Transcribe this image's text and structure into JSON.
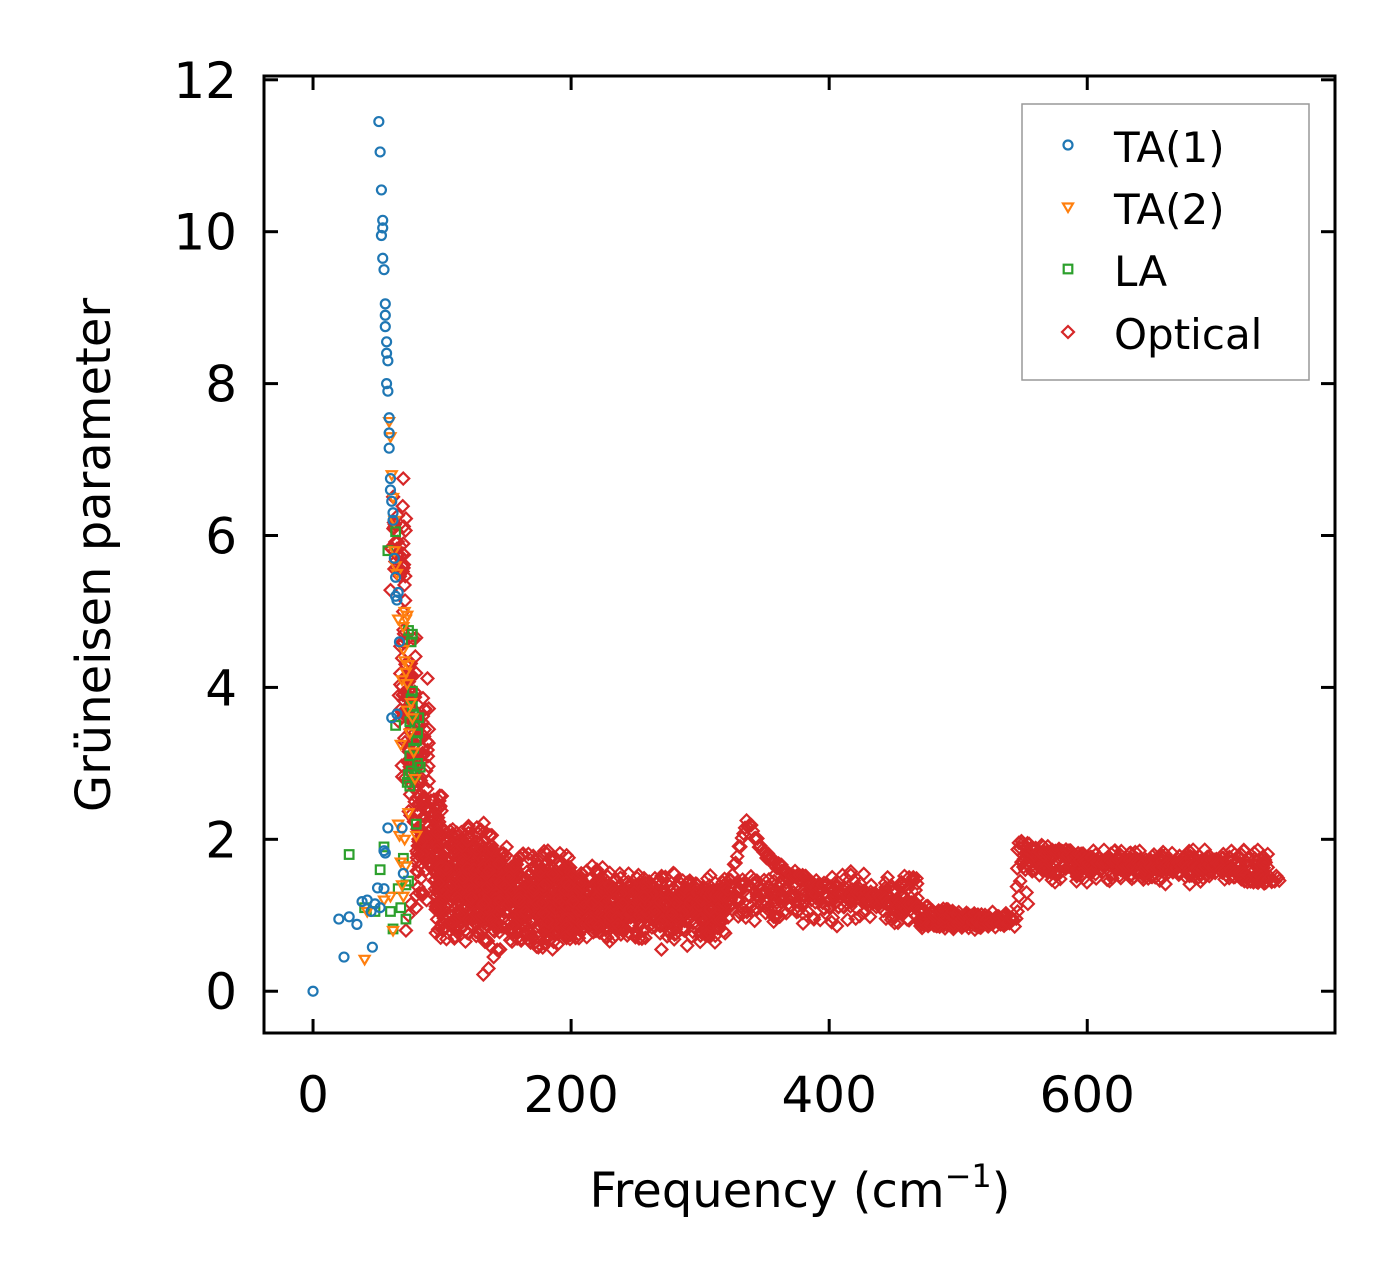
{
  "chart_data": {
    "type": "scatter",
    "xlabel": "Frequency (cm",
    "xlabel_unit_exp": "−1",
    "xlabel_close": ")",
    "ylabel": "Grüneisen parameter",
    "xlim": [
      -38,
      792
    ],
    "ylim": [
      -0.55,
      12.05
    ],
    "xticks": [
      0,
      200,
      400,
      600
    ],
    "yticks": [
      0,
      2,
      4,
      6,
      8,
      10,
      12
    ],
    "legend_position": "top-right",
    "series": [
      {
        "name": "TA(1)",
        "marker": "circle",
        "color": "#1f77b4",
        "points": [
          [
            0,
            0
          ],
          [
            20,
            0.95
          ],
          [
            24,
            0.45
          ],
          [
            28,
            0.98
          ],
          [
            34,
            0.88
          ],
          [
            38,
            1.18
          ],
          [
            42,
            1.2
          ],
          [
            45,
            1.05
          ],
          [
            46,
            0.58
          ],
          [
            48,
            1.15
          ],
          [
            50,
            1.36
          ],
          [
            51,
            11.45
          ],
          [
            52,
            11.05
          ],
          [
            52,
            1.1
          ],
          [
            53,
            10.55
          ],
          [
            54,
            10.15
          ],
          [
            54,
            10.05
          ],
          [
            53,
            9.95
          ],
          [
            54,
            9.65
          ],
          [
            55,
            9.5
          ],
          [
            55,
            1.35
          ],
          [
            55,
            1.85
          ],
          [
            56,
            9.05
          ],
          [
            56,
            8.9
          ],
          [
            56,
            8.75
          ],
          [
            57,
            8.55
          ],
          [
            57,
            8.4
          ],
          [
            58,
            8.3
          ],
          [
            56,
            1.82
          ],
          [
            58,
            2.15
          ],
          [
            57,
            8.0
          ],
          [
            58,
            7.9
          ],
          [
            59,
            7.55
          ],
          [
            59,
            7.35
          ],
          [
            59,
            7.15
          ],
          [
            60,
            6.75
          ],
          [
            60,
            6.6
          ],
          [
            61,
            6.45
          ],
          [
            62,
            6.3
          ],
          [
            61,
            3.6
          ],
          [
            62,
            6.2
          ],
          [
            63,
            5.7
          ],
          [
            64,
            5.45
          ],
          [
            64,
            5.2
          ],
          [
            65,
            5.15
          ],
          [
            65,
            3.65
          ],
          [
            66,
            5.25
          ],
          [
            67,
            4.6
          ],
          [
            69,
            2.15
          ],
          [
            70,
            1.55
          ]
        ]
      },
      {
        "name": "TA(2)",
        "marker": "triangle",
        "color": "#ff7f0e",
        "points": [
          [
            40,
            0.42
          ],
          [
            42,
            1.05
          ],
          [
            55,
            1.2
          ],
          [
            59,
            7.5
          ],
          [
            60,
            7.3
          ],
          [
            61,
            6.8
          ],
          [
            62,
            6.5
          ],
          [
            63,
            6.2
          ],
          [
            60,
            1.25
          ],
          [
            62,
            0.8
          ],
          [
            63,
            5.8
          ],
          [
            64,
            5.6
          ],
          [
            65,
            5.5
          ],
          [
            66,
            4.9
          ],
          [
            66,
            2.2
          ],
          [
            67,
            2.05
          ],
          [
            68,
            3.25
          ],
          [
            68,
            1.7
          ],
          [
            69,
            4.1
          ],
          [
            69,
            1.4
          ],
          [
            70,
            4.5
          ],
          [
            70,
            1.25
          ],
          [
            71,
            4.35
          ],
          [
            71,
            2.0
          ],
          [
            72,
            4.2
          ],
          [
            72,
            1.65
          ],
          [
            73,
            4.05
          ],
          [
            73,
            3.7
          ],
          [
            74,
            4.3
          ],
          [
            74,
            2.35
          ],
          [
            75,
            3.4
          ],
          [
            76,
            3.8
          ],
          [
            77,
            3.6
          ],
          [
            78,
            3.15
          ],
          [
            79,
            2.8
          ],
          [
            80,
            2.05
          ],
          [
            70,
            4.8
          ],
          [
            71,
            5.0
          ],
          [
            72,
            4.9
          ],
          [
            73,
            4.95
          ]
        ]
      },
      {
        "name": "LA",
        "marker": "square",
        "color": "#2ca02c",
        "points": [
          [
            28,
            1.8
          ],
          [
            40,
            1.1
          ],
          [
            48,
            1.05
          ],
          [
            52,
            1.6
          ],
          [
            55,
            1.9
          ],
          [
            58,
            5.8
          ],
          [
            60,
            1.05
          ],
          [
            62,
            0.82
          ],
          [
            64,
            6.05
          ],
          [
            64,
            3.5
          ],
          [
            66,
            1.35
          ],
          [
            68,
            1.1
          ],
          [
            70,
            1.75
          ],
          [
            72,
            0.95
          ],
          [
            72,
            1.4
          ],
          [
            73,
            2.75
          ],
          [
            74,
            2.85
          ],
          [
            74,
            1.45
          ],
          [
            75,
            3.1
          ],
          [
            75,
            2.7
          ],
          [
            76,
            2.9
          ],
          [
            76,
            3.85
          ],
          [
            77,
            3.75
          ],
          [
            77,
            3.95
          ],
          [
            78,
            3.65
          ],
          [
            78,
            3.2
          ],
          [
            79,
            3.5
          ],
          [
            79,
            2.85
          ],
          [
            80,
            3.3
          ],
          [
            80,
            2.2
          ],
          [
            81,
            3.0
          ],
          [
            81,
            3.4
          ],
          [
            82,
            3.6
          ],
          [
            83,
            2.95
          ],
          [
            76,
            4.6
          ],
          [
            77,
            4.7
          ],
          [
            74,
            4.75
          ],
          [
            75,
            3.55
          ]
        ]
      },
      {
        "name": "Optical",
        "marker": "diamond",
        "color": "#d62728",
        "clusters": [
          {
            "x": [
              60,
              72
            ],
            "y": [
              4.6,
              7.0
            ],
            "n": 40
          },
          {
            "x": [
              66,
              80
            ],
            "y": [
              2.5,
              5.2
            ],
            "n": 60
          },
          {
            "x": [
              74,
              90
            ],
            "y": [
              2.0,
              4.2
            ],
            "n": 60
          },
          {
            "x": [
              80,
              100
            ],
            "y": [
              1.2,
              2.8
            ],
            "n": 120
          },
          {
            "x": [
              95,
              140
            ],
            "y": [
              0.6,
              2.3
            ],
            "n": 420
          },
          {
            "x": [
              130,
              200
            ],
            "y": [
              0.5,
              1.9
            ],
            "n": 520
          },
          {
            "x": [
              195,
              230
            ],
            "y": [
              0.6,
              1.7
            ],
            "n": 240
          },
          {
            "x": [
              230,
              320
            ],
            "y": [
              0.6,
              1.6
            ],
            "n": 460
          },
          {
            "x": [
              320,
              470
            ],
            "y": [
              0.85,
              1.6
            ],
            "n": 260
          },
          {
            "x": [
              470,
              540
            ],
            "y": [
              0.8,
              1.05
            ],
            "n": 160
          },
          {
            "x": [
              550,
              740
            ],
            "y": [
              1.4,
              1.9
            ],
            "n": 360
          }
        ],
        "curve": [
          [
            300,
            1.25
          ],
          [
            320,
            1.3
          ],
          [
            330,
            1.85
          ],
          [
            336,
            2.25
          ],
          [
            342,
            2.05
          ],
          [
            348,
            1.85
          ],
          [
            356,
            1.7
          ],
          [
            370,
            1.55
          ],
          [
            390,
            1.4
          ],
          [
            420,
            1.3
          ],
          [
            450,
            1.15
          ],
          [
            480,
            1.05
          ],
          [
            510,
            0.97
          ],
          [
            540,
            0.93
          ],
          [
            545,
            0.9
          ],
          [
            546,
            1.9
          ],
          [
            550,
            1.95
          ],
          [
            560,
            1.88
          ],
          [
            580,
            1.85
          ],
          [
            600,
            1.72
          ],
          [
            640,
            1.68
          ],
          [
            680,
            1.63
          ],
          [
            700,
            1.68
          ],
          [
            710,
            1.55
          ],
          [
            730,
            1.47
          ],
          [
            750,
            1.48
          ]
        ],
        "points": [
          [
            72,
            0.8
          ],
          [
            74,
            1.0
          ],
          [
            76,
            1.15
          ],
          [
            80,
            1.1
          ],
          [
            85,
            1.3
          ],
          [
            88,
            1.2
          ],
          [
            132,
            0.22
          ],
          [
            136,
            0.3
          ],
          [
            140,
            0.45
          ],
          [
            145,
            0.55
          ],
          [
            150,
            1.9
          ],
          [
            160,
            1.75
          ],
          [
            182,
            1.85
          ],
          [
            188,
            1.75
          ],
          [
            270,
            0.55
          ],
          [
            290,
            0.6
          ],
          [
            300,
            0.65
          ],
          [
            546,
            1.05
          ],
          [
            547,
            1.25
          ],
          [
            548,
            1.45
          ],
          [
            549,
            1.7
          ],
          [
            552,
            1.6
          ],
          [
            553,
            1.3
          ],
          [
            554,
            1.15
          ]
        ]
      }
    ]
  }
}
